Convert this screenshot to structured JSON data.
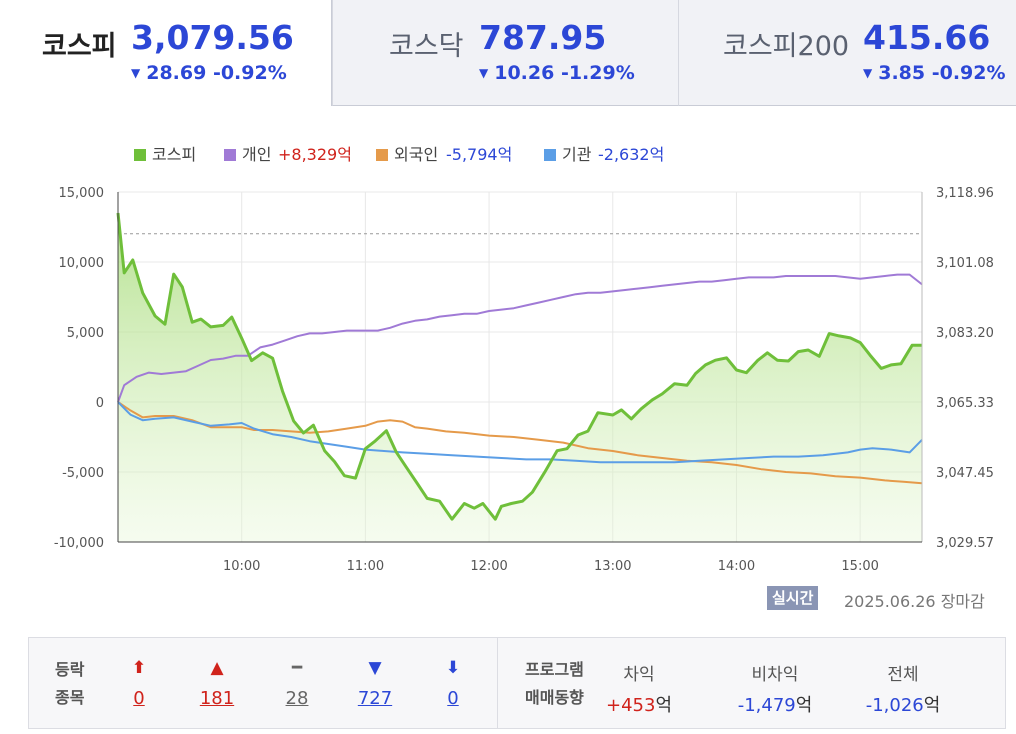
{
  "tabs": [
    {
      "name": "코스피",
      "value": "3,079.56",
      "change": "28.69 -0.92%"
    },
    {
      "name": "코스닥",
      "value": "787.95",
      "change": "10.26 -1.29%"
    },
    {
      "name": "코스피200",
      "value": "415.66",
      "change": "3.85 -0.92%"
    }
  ],
  "legend": [
    {
      "label": "코스피",
      "value": "",
      "color": "#6fbf3a"
    },
    {
      "label": "개인",
      "value": "+8,329억",
      "color": "#a07ad6"
    },
    {
      "label": "외국인",
      "value": "-5,794억",
      "color": "#e59a4a"
    },
    {
      "label": "기관",
      "value": "-2,632억",
      "color": "#5b9ee6"
    }
  ],
  "chart_data": {
    "type": "line",
    "x_ticks": [
      "10:00",
      "11:00",
      "12:00",
      "13:00",
      "14:00",
      "15:00"
    ],
    "y_left_ticks": [
      "15,000",
      "10,000",
      "5,000",
      "0",
      "-5,000",
      "-10,000"
    ],
    "y_right_ticks": [
      "3,118.96",
      "3,101.08",
      "3,083.20",
      "3,065.33",
      "3,047.45",
      "3,029.57"
    ],
    "ylim_left": [
      -10000,
      15000
    ],
    "ylim_right": [
      3029.57,
      3118.96
    ],
    "reference_line_right": 3108.3,
    "x_range_hours": [
      9.0,
      15.5
    ],
    "series": [
      {
        "name": "코스피",
        "axis": "right",
        "color": "#6fbf3a",
        "x": [
          9.0,
          9.05,
          9.12,
          9.2,
          9.3,
          9.38,
          9.45,
          9.52,
          9.6,
          9.67,
          9.75,
          9.85,
          9.92,
          10.0,
          10.08,
          10.17,
          10.25,
          10.33,
          10.42,
          10.5,
          10.58,
          10.67,
          10.75,
          10.83,
          10.92,
          11.0,
          11.08,
          11.17,
          11.25,
          11.33,
          11.42,
          11.5,
          11.6,
          11.7,
          11.8,
          11.88,
          11.95,
          12.05,
          12.1,
          12.18,
          12.27,
          12.35,
          12.45,
          12.55,
          12.63,
          12.72,
          12.8,
          12.88,
          13.0,
          13.07,
          13.15,
          13.23,
          13.32,
          13.4,
          13.5,
          13.6,
          13.67,
          13.75,
          13.83,
          13.92,
          14.0,
          14.08,
          14.17,
          14.25,
          14.33,
          14.42,
          14.5,
          14.58,
          14.67,
          14.75,
          14.83,
          14.92,
          15.0,
          15.08,
          15.17,
          15.25,
          15.33,
          15.42,
          15.5
        ],
        "y": [
          3113.6,
          3098.3,
          3101.6,
          3093.2,
          3087.3,
          3085.2,
          3098.0,
          3094.7,
          3085.7,
          3086.5,
          3084.5,
          3084.9,
          3087.0,
          3081.6,
          3075.9,
          3077.9,
          3076.5,
          3068.1,
          3060.5,
          3057.4,
          3059.4,
          3052.9,
          3050.1,
          3046.5,
          3045.9,
          3053.4,
          3055.4,
          3058.0,
          3052.5,
          3048.7,
          3044.5,
          3040.7,
          3040.0,
          3035.4,
          3039.4,
          3038.2,
          3039.4,
          3035.4,
          3038.7,
          3039.4,
          3040.0,
          3042.3,
          3047.4,
          3052.9,
          3053.4,
          3056.9,
          3057.9,
          3062.6,
          3062.0,
          3063.3,
          3061.0,
          3063.6,
          3065.9,
          3067.4,
          3070.0,
          3069.6,
          3072.6,
          3074.8,
          3076.0,
          3076.6,
          3073.5,
          3072.8,
          3075.9,
          3077.9,
          3076.0,
          3075.8,
          3078.2,
          3078.6,
          3077.0,
          3082.8,
          3082.2,
          3081.7,
          3080.5,
          3077.3,
          3073.9,
          3074.8,
          3075.1,
          3079.8,
          3079.8
        ]
      },
      {
        "name": "개인",
        "axis": "left",
        "color": "#a07ad6",
        "x": [
          9.0,
          9.05,
          9.15,
          9.25,
          9.35,
          9.45,
          9.55,
          9.65,
          9.75,
          9.85,
          9.95,
          10.05,
          10.15,
          10.25,
          10.35,
          10.45,
          10.55,
          10.65,
          10.75,
          10.85,
          11.0,
          11.1,
          11.2,
          11.3,
          11.4,
          11.5,
          11.6,
          11.7,
          11.8,
          11.9,
          12.0,
          12.1,
          12.2,
          12.3,
          12.4,
          12.5,
          12.6,
          12.7,
          12.8,
          12.9,
          13.0,
          13.1,
          13.2,
          13.3,
          13.4,
          13.5,
          13.6,
          13.7,
          13.8,
          13.9,
          14.0,
          14.1,
          14.2,
          14.3,
          14.4,
          14.5,
          14.6,
          14.7,
          14.8,
          14.9,
          15.0,
          15.1,
          15.2,
          15.3,
          15.4,
          15.5
        ],
        "y": [
          0,
          1200,
          1800,
          2100,
          2000,
          2100,
          2200,
          2600,
          3000,
          3100,
          3300,
          3300,
          3900,
          4100,
          4400,
          4700,
          4900,
          4900,
          5000,
          5100,
          5100,
          5100,
          5300,
          5600,
          5800,
          5900,
          6100,
          6200,
          6300,
          6300,
          6500,
          6600,
          6700,
          6900,
          7100,
          7300,
          7500,
          7700,
          7800,
          7800,
          7900,
          8000,
          8100,
          8200,
          8300,
          8400,
          8500,
          8600,
          8600,
          8700,
          8800,
          8900,
          8900,
          8900,
          9000,
          9000,
          9000,
          9000,
          9000,
          8900,
          8800,
          8900,
          9000,
          9100,
          9100,
          8400
        ]
      },
      {
        "name": "외국인",
        "axis": "left",
        "color": "#e59a4a",
        "x": [
          9.0,
          9.1,
          9.2,
          9.3,
          9.45,
          9.6,
          9.75,
          9.9,
          10.0,
          10.1,
          10.25,
          10.4,
          10.55,
          10.7,
          10.85,
          11.0,
          11.1,
          11.2,
          11.3,
          11.4,
          11.5,
          11.65,
          11.8,
          12.0,
          12.2,
          12.4,
          12.6,
          12.8,
          13.0,
          13.2,
          13.4,
          13.6,
          13.8,
          14.0,
          14.2,
          14.4,
          14.6,
          14.8,
          15.0,
          15.2,
          15.35,
          15.5
        ],
        "y": [
          0,
          -600,
          -1100,
          -1000,
          -1000,
          -1300,
          -1800,
          -1800,
          -1800,
          -2000,
          -2000,
          -2100,
          -2200,
          -2100,
          -1900,
          -1700,
          -1400,
          -1300,
          -1400,
          -1800,
          -1900,
          -2100,
          -2200,
          -2400,
          -2500,
          -2700,
          -2900,
          -3300,
          -3500,
          -3800,
          -4000,
          -4200,
          -4300,
          -4500,
          -4800,
          -5000,
          -5100,
          -5300,
          -5400,
          -5600,
          -5700,
          -5800
        ]
      },
      {
        "name": "기관",
        "axis": "left",
        "color": "#5b9ee6",
        "x": [
          9.0,
          9.1,
          9.2,
          9.3,
          9.45,
          9.6,
          9.75,
          9.9,
          10.0,
          10.1,
          10.25,
          10.4,
          10.55,
          10.7,
          10.85,
          11.0,
          11.15,
          11.3,
          11.5,
          11.7,
          11.9,
          12.1,
          12.3,
          12.5,
          12.7,
          12.9,
          13.1,
          13.3,
          13.5,
          13.7,
          13.9,
          14.1,
          14.3,
          14.5,
          14.7,
          14.9,
          15.0,
          15.1,
          15.25,
          15.4,
          15.5
        ],
        "y": [
          0,
          -900,
          -1300,
          -1200,
          -1100,
          -1400,
          -1700,
          -1600,
          -1500,
          -1900,
          -2300,
          -2500,
          -2800,
          -3000,
          -3200,
          -3400,
          -3500,
          -3600,
          -3700,
          -3800,
          -3900,
          -4000,
          -4100,
          -4100,
          -4200,
          -4300,
          -4300,
          -4300,
          -4300,
          -4200,
          -4100,
          -4000,
          -3900,
          -3900,
          -3800,
          -3600,
          -3400,
          -3300,
          -3400,
          -3600,
          -2700
        ]
      }
    ]
  },
  "timestamp": {
    "badge": "실시간",
    "text": "2025.06.26 장마감"
  },
  "breadth": {
    "label_line1": "등락",
    "label_line2": "종목",
    "items": [
      {
        "symbol": "⬆",
        "count": "0",
        "tone": "red"
      },
      {
        "symbol": "▲",
        "count": "181",
        "tone": "red"
      },
      {
        "symbol": "━",
        "count": "28",
        "tone": "gray"
      },
      {
        "symbol": "▼",
        "count": "727",
        "tone": "blue"
      },
      {
        "symbol": "⬇",
        "count": "0",
        "tone": "blue"
      }
    ]
  },
  "program": {
    "label_line1": "프로그램",
    "label_line2": "매매동향",
    "items": [
      {
        "header": "차익",
        "value": "+453",
        "unit": "억",
        "tone": "red"
      },
      {
        "header": "비차익",
        "value": "-1,479",
        "unit": "억",
        "tone": "blue"
      },
      {
        "header": "전체",
        "value": "-1,026",
        "unit": "억",
        "tone": "blue"
      }
    ]
  }
}
